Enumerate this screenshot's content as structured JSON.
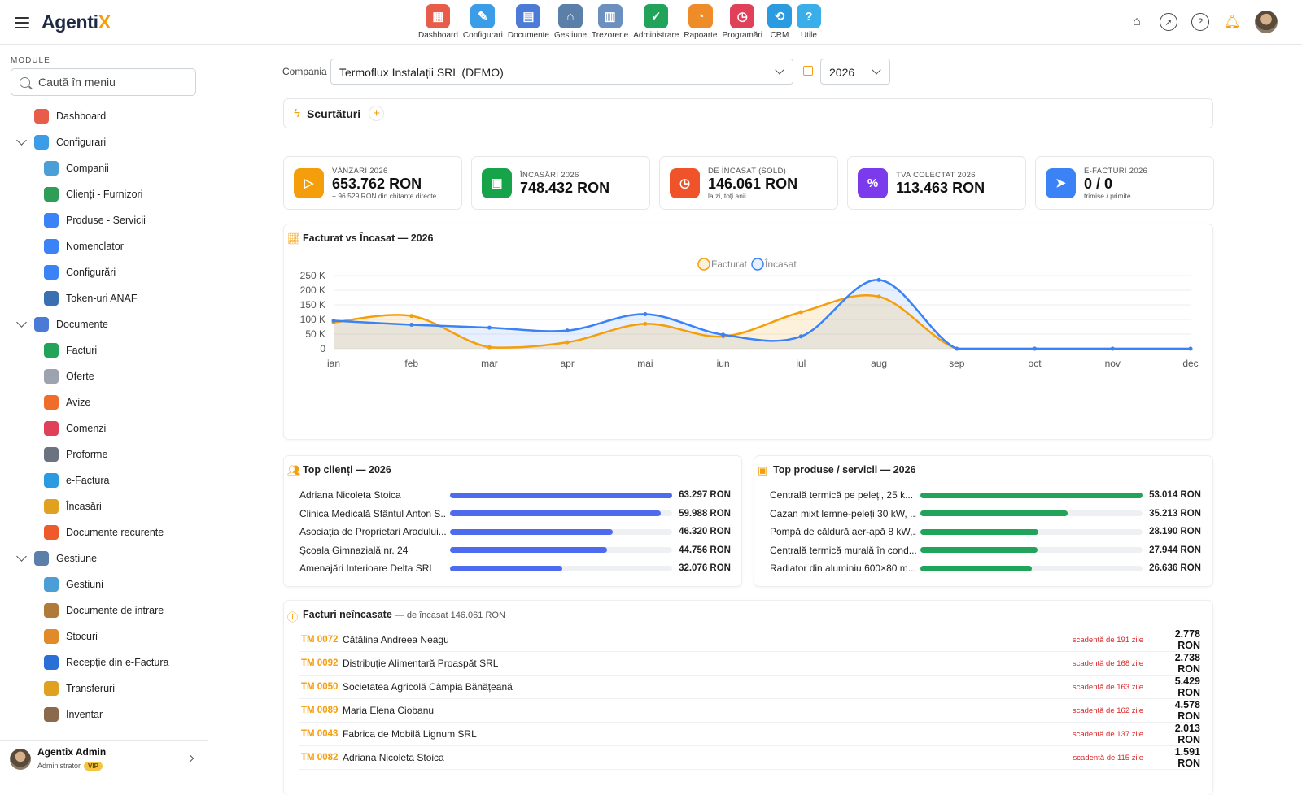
{
  "app": {
    "logo_main": "Agenti",
    "logo_accent": "X"
  },
  "top_modules": [
    {
      "label": "Dashboard",
      "icon": "dashboard-icon",
      "color": "#e85d4a",
      "glyph": "▦"
    },
    {
      "label": "Configurari",
      "icon": "wrench-icon",
      "color": "#3b9de8",
      "glyph": "✎"
    },
    {
      "label": "Documente",
      "icon": "documents-icon",
      "color": "#4b7bd6",
      "glyph": "▤"
    },
    {
      "label": "Gestiune",
      "icon": "warehouse-icon",
      "color": "#5a7fa8",
      "glyph": "⌂"
    },
    {
      "label": "Trezorerie",
      "icon": "bank-icon",
      "color": "#6b8fbf",
      "glyph": "▥"
    },
    {
      "label": "Administrare",
      "icon": "shield-icon",
      "color": "#22a35a",
      "glyph": "✓"
    },
    {
      "label": "Rapoarte",
      "icon": "reports-icon",
      "color": "#ef8c2a",
      "glyph": "◔"
    },
    {
      "label": "Programări",
      "icon": "clock-icon",
      "color": "#e0405a",
      "glyph": "◷"
    },
    {
      "label": "CRM",
      "icon": "crm-icon",
      "color": "#2a9be0",
      "glyph": "⟲"
    },
    {
      "label": "Utile",
      "icon": "help-icon",
      "color": "#3aaee8",
      "glyph": "?"
    }
  ],
  "sidebar": {
    "section_label": "MODULE",
    "search_placeholder": "Caută în meniu",
    "items": [
      {
        "label": "Dashboard",
        "level": 0,
        "color": "#e85d4a"
      },
      {
        "label": "Configurari",
        "level": 0,
        "color": "#3b9de8",
        "expanded": true
      },
      {
        "label": "Companii",
        "level": 1,
        "color": "#4b9fd6"
      },
      {
        "label": "Clienți - Furnizori",
        "level": 1,
        "color": "#2e9d57"
      },
      {
        "label": "Produse - Servicii",
        "level": 1,
        "color": "#3b82f6"
      },
      {
        "label": "Nomenclator",
        "level": 1,
        "color": "#3b82f6"
      },
      {
        "label": "Configurări",
        "level": 1,
        "color": "#3b82f6"
      },
      {
        "label": "Token-uri ANAF",
        "level": 1,
        "color": "#3a6fb0"
      },
      {
        "label": "Documente",
        "level": 0,
        "color": "#4b7bd6",
        "expanded": true
      },
      {
        "label": "Facturi",
        "level": 1,
        "color": "#22a35a"
      },
      {
        "label": "Oferte",
        "level": 1,
        "color": "#9ca3af"
      },
      {
        "label": "Avize",
        "level": 1,
        "color": "#ef6c2a"
      },
      {
        "label": "Comenzi",
        "level": 1,
        "color": "#e0405a"
      },
      {
        "label": "Proforme",
        "level": 1,
        "color": "#6b7280"
      },
      {
        "label": "e-Factura",
        "level": 1,
        "color": "#2a9be0"
      },
      {
        "label": "Încasări",
        "level": 1,
        "color": "#e0a020"
      },
      {
        "label": "Documente recurente",
        "level": 1,
        "color": "#ef5a2a"
      },
      {
        "label": "Gestiune",
        "level": 0,
        "color": "#5a7fa8",
        "expanded": true
      },
      {
        "label": "Gestiuni",
        "level": 1,
        "color": "#4b9fd6"
      },
      {
        "label": "Documente de intrare",
        "level": 1,
        "color": "#b07a3a"
      },
      {
        "label": "Stocuri",
        "level": 1,
        "color": "#e08a2a"
      },
      {
        "label": "Recepție din e-Factura",
        "level": 1,
        "color": "#2a6fd6"
      },
      {
        "label": "Transferuri",
        "level": 1,
        "color": "#e0a020"
      },
      {
        "label": "Inventar",
        "level": 1,
        "color": "#8a6a4a"
      }
    ]
  },
  "user": {
    "name": "Agentix Admin",
    "role": "Administrator",
    "badge": "VIP"
  },
  "filters": {
    "company_label": "Compania",
    "company_value": "Termoflux Instalații SRL (DEMO)",
    "year_value": "2026"
  },
  "shortcuts": {
    "title": "Scurtături"
  },
  "kpis": [
    {
      "label": "VÂNZĂRI 2026",
      "value": "653.762 RON",
      "sub": "+ 96.529 RON din chitanțe directe",
      "color": "#f59e0b",
      "icon": "sales-icon",
      "glyph": "▷"
    },
    {
      "label": "ÎNCASĂRI 2026",
      "value": "748.432 RON",
      "sub": "",
      "color": "#16a34a",
      "icon": "wallet-icon",
      "glyph": "▣"
    },
    {
      "label": "DE ÎNCASAT (SOLD)",
      "value": "146.061 RON",
      "sub": "la zi, toți anii",
      "color": "#f0522a",
      "icon": "clock-icon",
      "glyph": "◷"
    },
    {
      "label": "TVA COLECTAT 2026",
      "value": "113.463 RON",
      "sub": "",
      "color": "#7c3aed",
      "icon": "percent-icon",
      "glyph": "%"
    },
    {
      "label": "E-FACTURI 2026",
      "value": "0 / 0",
      "sub": "trimise / primite",
      "color": "#3b82f6",
      "icon": "send-icon",
      "glyph": "➤"
    }
  ],
  "chart_title": "Facturat vs Încasat — 2026",
  "chart_data": {
    "type": "area",
    "title": "Facturat vs Încasat — 2026",
    "categories": [
      "ian",
      "feb",
      "mar",
      "apr",
      "mai",
      "iun",
      "iul",
      "aug",
      "sep",
      "oct",
      "nov",
      "dec"
    ],
    "series": [
      {
        "name": "Facturat",
        "values": [
          90000,
          112000,
          5000,
          22000,
          85000,
          42000,
          125000,
          178000,
          0,
          0,
          0,
          0
        ],
        "color": "#f59e0b"
      },
      {
        "name": "Încasat",
        "values": [
          96000,
          82000,
          72000,
          62000,
          118000,
          48000,
          42000,
          235000,
          0,
          0,
          0,
          0
        ],
        "color": "#3b82f6"
      }
    ],
    "ylim": [
      0,
      250000
    ],
    "yticks": [
      "0",
      "50 K",
      "100 K",
      "150 K",
      "200 K",
      "250 K"
    ],
    "legend": "top-center",
    "grid": true
  },
  "top_clients": {
    "title": "Top clienți — 2026",
    "color": "#4f6bed",
    "max": 63297,
    "items": [
      {
        "name": "Adriana Nicoleta Stoica",
        "value": 63297,
        "label": "63.297 RON"
      },
      {
        "name": "Clinica Medicală Sfântul Anton S...",
        "value": 59988,
        "label": "59.988 RON"
      },
      {
        "name": "Asociația de Proprietari Aradului...",
        "value": 46320,
        "label": "46.320 RON"
      },
      {
        "name": "Școala Gimnazială nr. 24",
        "value": 44756,
        "label": "44.756 RON"
      },
      {
        "name": "Amenajări Interioare Delta SRL",
        "value": 32076,
        "label": "32.076 RON"
      }
    ]
  },
  "top_products": {
    "title": "Top produse / servicii — 2026",
    "color": "#22a35a",
    "max": 53014,
    "items": [
      {
        "name": "Centrală termică pe peleți, 25 k...",
        "value": 53014,
        "label": "53.014 RON"
      },
      {
        "name": "Cazan mixt lemne-peleți 30 kW, ...",
        "value": 35213,
        "label": "35.213 RON"
      },
      {
        "name": "Pompă de căldură aer-apă 8 kW,...",
        "value": 28190,
        "label": "28.190 RON"
      },
      {
        "name": "Centrală termică murală în cond...",
        "value": 27944,
        "label": "27.944 RON"
      },
      {
        "name": "Radiator din aluminiu 600×80 m...",
        "value": 26636,
        "label": "26.636 RON"
      }
    ]
  },
  "unpaid": {
    "title": "Facturi neîncasate",
    "subtitle": "— de încasat 146.061 RON",
    "rows": [
      {
        "num": "TM 0072",
        "client": "Cătălina Andreea Neagu",
        "due": "scadentă de 191 zile",
        "amount": "2.778 RON"
      },
      {
        "num": "TM 0092",
        "client": "Distribuție Alimentară Proaspăt SRL",
        "due": "scadentă de 168 zile",
        "amount": "2.738 RON"
      },
      {
        "num": "TM 0050",
        "client": "Societatea Agricolă Câmpia Bănățeană",
        "due": "scadentă de 163 zile",
        "amount": "5.429 RON"
      },
      {
        "num": "TM 0089",
        "client": "Maria Elena Ciobanu",
        "due": "scadentă de 162 zile",
        "amount": "4.578 RON"
      },
      {
        "num": "TM 0043",
        "client": "Fabrica de Mobilă Lignum SRL",
        "due": "scadentă de 137 zile",
        "amount": "2.013 RON"
      },
      {
        "num": "TM 0082",
        "client": "Adriana Nicoleta Stoica",
        "due": "scadentă de 115 zile",
        "amount": "1.591 RON"
      }
    ]
  }
}
